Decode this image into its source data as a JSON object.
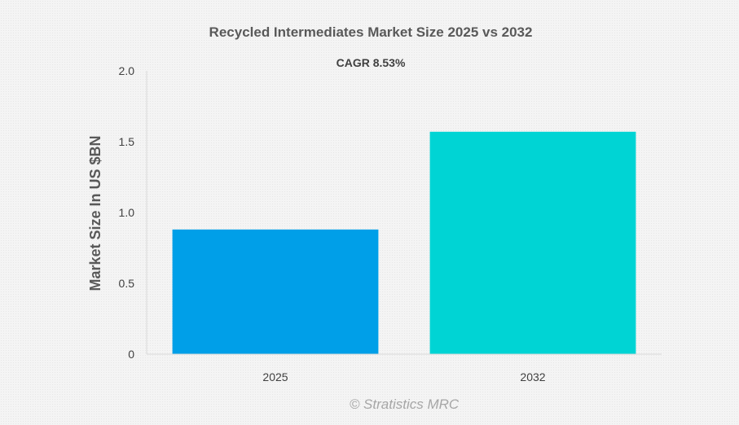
{
  "chart_data": {
    "type": "bar",
    "title": "Recycled Intermediates Market Size 2025 vs 2032",
    "subtitle": "CAGR 8.53%",
    "xlabel": "",
    "ylabel": "Market Size In US $BN",
    "categories": [
      "2025",
      "2032"
    ],
    "values": [
      0.88,
      1.57
    ],
    "colors": [
      "#009fe8",
      "#00d4d4"
    ],
    "ylim": [
      0,
      2.0
    ],
    "yticks": [
      0,
      0.5,
      1.0,
      1.5,
      2.0
    ],
    "ytick_labels": [
      "0",
      "0.5",
      "1.0",
      "1.5",
      "2.0"
    ],
    "grid": false,
    "legend": "none"
  },
  "watermark": "© Stratistics MRC"
}
